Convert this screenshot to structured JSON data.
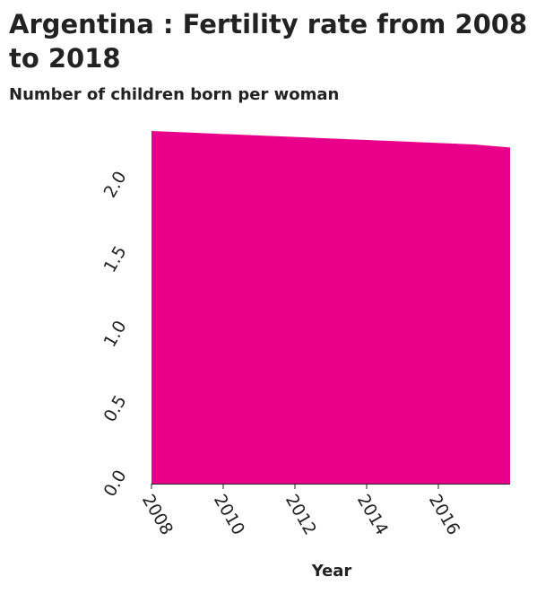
{
  "chart_data": {
    "type": "area",
    "title": "Argentina : Fertility rate from 2008 to 2018",
    "ylabel": "Number of children born per woman",
    "xlabel": "Year",
    "x": [
      2008,
      2009,
      2010,
      2011,
      2012,
      2013,
      2014,
      2015,
      2016,
      2017,
      2018
    ],
    "values": [
      2.36,
      2.35,
      2.34,
      2.33,
      2.32,
      2.31,
      2.3,
      2.29,
      2.28,
      2.27,
      2.25
    ],
    "xlim": [
      2008,
      2018
    ],
    "ylim": [
      0,
      2.36
    ],
    "x_ticks": [
      "2008",
      "2010",
      "2012",
      "2014",
      "2016"
    ],
    "y_ticks": [
      "0.0",
      "0.5",
      "1.0",
      "1.5",
      "2.0"
    ],
    "fill_color": "#e8008a",
    "grid": false
  }
}
